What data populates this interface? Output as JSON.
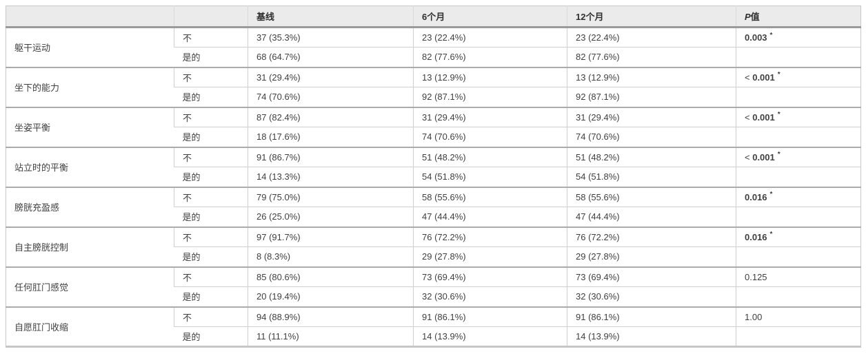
{
  "table": {
    "headers": {
      "col1": "",
      "col2": "",
      "baseline": "基线",
      "m6": "6个月",
      "m12": "12个月",
      "p_italic": "P",
      "p_rest": "值"
    },
    "groups": [
      {
        "label": "躯干运动",
        "rows": [
          {
            "answer": "不",
            "baseline": "37 (35.3%)",
            "m6": "23 (22.4%)",
            "m12": "23 (22.4%)"
          },
          {
            "answer": "是的",
            "baseline": "68 (64.7%)",
            "m6": "82 (77.6%)",
            "m12": "82 (77.6%)"
          }
        ],
        "p": {
          "prefix": "",
          "value": "0.003",
          "star": "*"
        }
      },
      {
        "label": "坐下的能力",
        "rows": [
          {
            "answer": "不",
            "baseline": "31 (29.4%)",
            "m6": "13 (12.9%)",
            "m12": "13 (12.9%)"
          },
          {
            "answer": "是的",
            "baseline": "74 (70.6%)",
            "m6": "92 (87.1%)",
            "m12": "92 (87.1%)"
          }
        ],
        "p": {
          "prefix": "< ",
          "value": "0.001",
          "star": "*"
        }
      },
      {
        "label": "坐姿平衡",
        "rows": [
          {
            "answer": "不",
            "baseline": "87 (82.4%)",
            "m6": "31 (29.4%)",
            "m12": "31 (29.4%)"
          },
          {
            "answer": "是的",
            "baseline": "18 (17.6%)",
            "m6": "74 (70.6%)",
            "m12": "74 (70.6%)"
          }
        ],
        "p": {
          "prefix": "< ",
          "value": "0.001",
          "star": "*"
        }
      },
      {
        "label": "站立时的平衡",
        "rows": [
          {
            "answer": "不",
            "baseline": "91 (86.7%)",
            "m6": "51 (48.2%)",
            "m12": "51 (48.2%)"
          },
          {
            "answer": "是的",
            "baseline": "14 (13.3%)",
            "m6": "54 (51.8%)",
            "m12": "54 (51.8%)"
          }
        ],
        "p": {
          "prefix": "< ",
          "value": "0.001",
          "star": "*"
        }
      },
      {
        "label": "膀胱充盈感",
        "rows": [
          {
            "answer": "不",
            "baseline": "79 (75.0%)",
            "m6": "58 (55.6%)",
            "m12": "58 (55.6%)"
          },
          {
            "answer": "是的",
            "baseline": "26 (25.0%)",
            "m6": "47 (44.4%)",
            "m12": "47 (44.4%)"
          }
        ],
        "p": {
          "prefix": "",
          "value": "0.016",
          "star": "*"
        }
      },
      {
        "label": "自主膀胱控制",
        "rows": [
          {
            "answer": "不",
            "baseline": "97 (91.7%)",
            "m6": "76 (72.2%)",
            "m12": "76 (72.2%)"
          },
          {
            "answer": "是的",
            "baseline": "8 (8.3%)",
            "m6": "29 (27.8%)",
            "m12": "29 (27.8%)"
          }
        ],
        "p": {
          "prefix": "",
          "value": "0.016",
          "star": "*"
        }
      },
      {
        "label": "任何肛门感觉",
        "rows": [
          {
            "answer": "不",
            "baseline": "85 (80.6%)",
            "m6": "73 (69.4%)",
            "m12": "73 (69.4%)"
          },
          {
            "answer": "是的",
            "baseline": "20 (19.4%)",
            "m6": "32 (30.6%)",
            "m12": "32 (30.6%)"
          }
        ],
        "p": {
          "prefix": "",
          "value": "0.125",
          "star": ""
        }
      },
      {
        "label": "自愿肛门收缩",
        "rows": [
          {
            "answer": "不",
            "baseline": "94 (88.9%)",
            "m6": "91 (86.1%)",
            "m12": "91 (86.1%)"
          },
          {
            "answer": "是的",
            "baseline": "11 (11.1%)",
            "m6": "14 (13.9%)",
            "m12": "14 (13.9%)"
          }
        ],
        "p": {
          "prefix": "",
          "value": "1.00",
          "star": ""
        }
      }
    ]
  }
}
